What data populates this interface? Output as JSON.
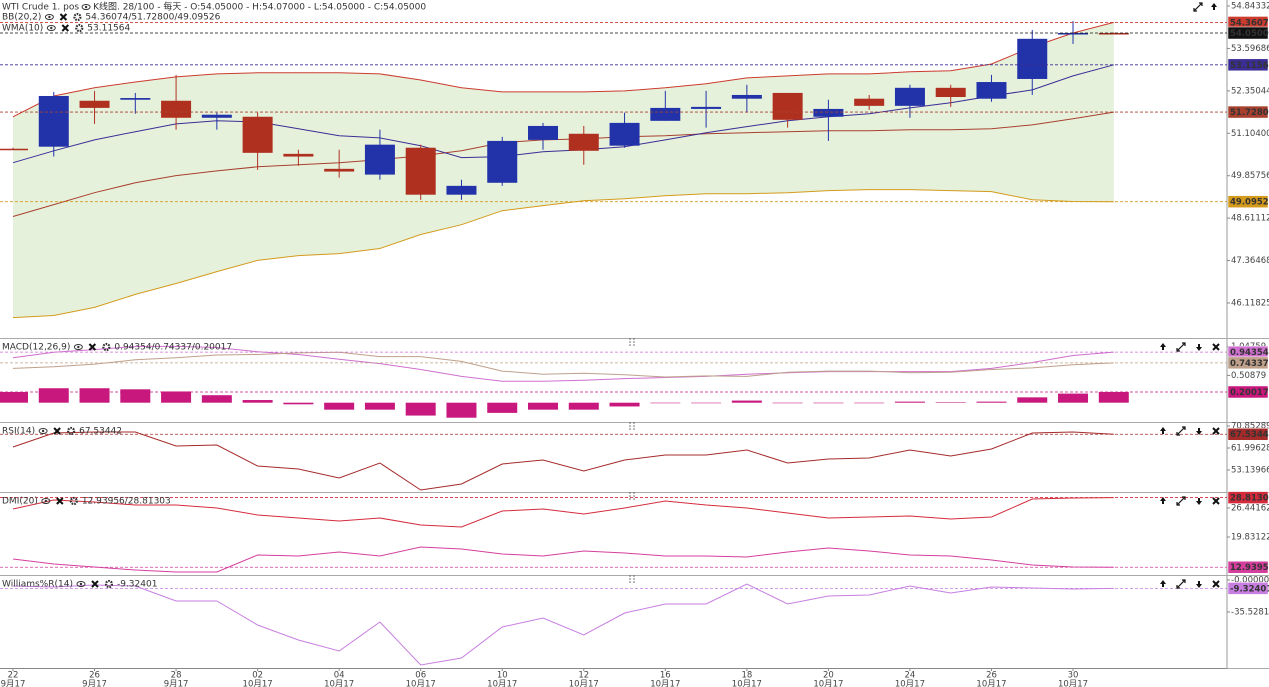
{
  "chart_data": [
    {
      "type": "candlestick",
      "title": "WTI Crude 1. pos",
      "subtitle": "K线图. 28/100 - 每天 - O:54.05000 - H:54.07000 - L:54.05000 - C:54.05000",
      "categories": [
        "22",
        null,
        "26",
        null,
        "28",
        null,
        "02",
        null,
        "04",
        null,
        "06",
        null,
        "10",
        null,
        "12",
        null,
        "16",
        null,
        "18",
        null,
        "20",
        null,
        "24",
        null,
        "26",
        null,
        "30",
        null
      ],
      "category_months": [
        "9月17",
        null,
        "9月17",
        null,
        "9月17",
        null,
        "10月17",
        null,
        "10月17",
        null,
        "10月17",
        null,
        "10月17",
        null,
        "10月17",
        null,
        "10月17",
        null,
        "10月17",
        null,
        "10月17",
        null,
        "10月17",
        null,
        "10月17",
        null,
        "10月17",
        null
      ],
      "up_color": "#2233aa",
      "down_color": "#b03020",
      "close_color": "#111111",
      "band_fill": "#e6f1dc",
      "open": [
        50.65,
        50.71,
        52.06,
        52.09,
        52.06,
        51.56,
        51.59,
        50.5,
        50.06,
        49.89,
        50.68,
        49.3,
        49.65,
        50.91,
        51.09,
        50.74,
        51.47,
        51.82,
        52.12,
        52.29,
        51.59,
        52.12,
        51.91,
        52.44,
        52.12,
        52.7,
        54.02,
        54.05
      ],
      "high": [
        50.68,
        52.32,
        52.35,
        52.29,
        52.82,
        51.71,
        51.71,
        50.62,
        50.62,
        51.21,
        50.77,
        49.74,
        51.0,
        51.41,
        51.32,
        51.71,
        52.35,
        52.35,
        52.53,
        52.29,
        52.09,
        52.23,
        52.53,
        52.53,
        52.82,
        54.14,
        54.4,
        54.07
      ],
      "low": [
        50.62,
        50.42,
        51.38,
        51.68,
        51.21,
        51.21,
        50.03,
        50.15,
        49.8,
        49.74,
        49.15,
        49.15,
        49.56,
        50.62,
        50.18,
        50.68,
        51.47,
        51.27,
        51.71,
        51.27,
        50.88,
        51.79,
        51.56,
        51.88,
        52.03,
        52.23,
        53.73,
        54.05
      ],
      "close": [
        50.65,
        52.2,
        51.85,
        52.14,
        51.56,
        51.65,
        50.53,
        50.42,
        49.98,
        50.77,
        49.3,
        49.56,
        50.88,
        51.32,
        50.59,
        51.41,
        51.85,
        51.88,
        52.23,
        51.5,
        51.82,
        51.91,
        52.44,
        52.17,
        52.61,
        53.88,
        54.05,
        54.05
      ],
      "close_labels": [
        null,
        null,
        null,
        null,
        null,
        null,
        null,
        null,
        null,
        null,
        null,
        null,
        null,
        null,
        null,
        null,
        null,
        null,
        null,
        null,
        null,
        null,
        null,
        null,
        null,
        null,
        null,
        "54.05000"
      ],
      "legend": [
        {
          "label": "BB(20,2)",
          "value": "54.36074/51.72800/49.09526",
          "color": "#c0392b"
        },
        {
          "label": "WMA(10)",
          "value": "53.11564",
          "color": "#4a2c8a"
        }
      ],
      "series": [
        {
          "color": "#cc3b2e",
          "band": true,
          "values": [
            51.59,
            52.2,
            52.44,
            52.61,
            52.76,
            52.85,
            52.88,
            52.88,
            52.88,
            52.85,
            52.67,
            52.44,
            52.32,
            52.32,
            52.32,
            52.35,
            52.44,
            52.56,
            52.73,
            52.79,
            52.85,
            52.85,
            52.91,
            52.94,
            53.14,
            53.64,
            54.05,
            54.36074
          ],
          "value_labels": [
            null,
            null,
            null,
            null,
            null,
            null,
            null,
            null,
            null,
            null,
            null,
            null,
            null,
            null,
            null,
            null,
            null,
            null,
            null,
            null,
            null,
            null,
            null,
            null,
            null,
            null,
            null,
            "54.36074"
          ]
        },
        {
          "color": "#a8402f",
          "values": [
            48.66,
            49.01,
            49.36,
            49.65,
            49.86,
            50.0,
            50.12,
            50.18,
            50.24,
            50.33,
            50.44,
            50.59,
            50.83,
            50.91,
            50.94,
            51.0,
            51.03,
            51.09,
            51.12,
            51.15,
            51.18,
            51.18,
            51.21,
            51.21,
            51.24,
            51.35,
            51.53,
            51.728
          ],
          "value_labels": [
            null,
            null,
            null,
            null,
            null,
            null,
            null,
            null,
            null,
            null,
            null,
            null,
            null,
            null,
            null,
            null,
            null,
            null,
            null,
            null,
            null,
            null,
            null,
            null,
            null,
            null,
            null,
            "51.72800"
          ]
        },
        {
          "color": "#d49a1c",
          "band": true,
          "values": [
            45.69,
            45.75,
            45.99,
            46.37,
            46.69,
            47.04,
            47.37,
            47.51,
            47.57,
            47.72,
            48.13,
            48.42,
            48.83,
            48.98,
            49.12,
            49.18,
            49.27,
            49.33,
            49.33,
            49.36,
            49.42,
            49.45,
            49.45,
            49.42,
            49.39,
            49.15,
            49.1,
            49.09526
          ],
          "value_labels": [
            null,
            null,
            null,
            null,
            null,
            null,
            null,
            null,
            null,
            null,
            null,
            null,
            null,
            null,
            null,
            null,
            null,
            null,
            null,
            null,
            null,
            null,
            null,
            null,
            null,
            null,
            null,
            "49.09526"
          ]
        },
        {
          "color": "#3b2d96",
          "values": [
            50.24,
            50.59,
            50.91,
            51.15,
            51.38,
            51.47,
            51.44,
            51.24,
            51.03,
            50.97,
            50.74,
            50.39,
            50.42,
            50.56,
            50.62,
            50.71,
            50.91,
            51.12,
            51.3,
            51.47,
            51.59,
            51.68,
            51.85,
            52.0,
            52.2,
            52.38,
            52.79,
            53.11564
          ],
          "value_labels": [
            null,
            null,
            null,
            null,
            null,
            null,
            null,
            null,
            null,
            null,
            null,
            null,
            null,
            null,
            null,
            null,
            null,
            null,
            null,
            null,
            null,
            null,
            null,
            null,
            null,
            null,
            null,
            "53.11564"
          ]
        }
      ],
      "ylim": [
        45.09,
        55.02
      ],
      "yticks": [
        54.84332,
        53.59686,
        52.35044,
        {
          "value": 51.104,
          "label": "51.10400"
        },
        49.85756,
        48.61112,
        47.36468,
        46.11825
      ]
    },
    {
      "type": "combo",
      "legend": [
        {
          "label": "MACD(12,26,9)",
          "value": "0.94354/0.74337/0.20017",
          "color": "#c05ac0"
        }
      ],
      "series": [
        {
          "kind": "bar",
          "color": "#c8187e",
          "values": [
            0.2,
            0.27,
            0.27,
            0.25,
            0.21,
            0.14,
            0.05,
            -0.03,
            -0.13,
            -0.13,
            -0.24,
            -0.28,
            -0.19,
            -0.13,
            -0.13,
            -0.07,
            -0.01,
            -0.01,
            0.04,
            -0.01,
            -0.01,
            -0.01,
            0.02,
            0.01,
            0.02,
            0.1,
            0.17,
            0.20017
          ],
          "value_labels": [
            null,
            null,
            null,
            null,
            null,
            null,
            null,
            null,
            null,
            null,
            null,
            null,
            null,
            null,
            null,
            null,
            null,
            null,
            null,
            null,
            null,
            null,
            null,
            null,
            null,
            null,
            null,
            "0.20017"
          ]
        },
        {
          "kind": "line",
          "color": "#cf6fcf",
          "values": [
            0.84,
            0.94,
            0.99,
            1.05,
            1.05,
            1.03,
            0.95,
            0.9,
            0.81,
            0.73,
            0.62,
            0.49,
            0.4,
            0.4,
            0.42,
            0.45,
            0.47,
            0.49,
            0.53,
            0.56,
            0.58,
            0.58,
            0.58,
            0.58,
            0.64,
            0.75,
            0.88,
            0.94354
          ],
          "value_labels": [
            null,
            null,
            null,
            null,
            null,
            null,
            null,
            null,
            null,
            null,
            null,
            null,
            null,
            null,
            null,
            null,
            null,
            null,
            null,
            null,
            null,
            null,
            null,
            null,
            null,
            null,
            null,
            "0.94354"
          ]
        },
        {
          "kind": "line",
          "color": "#bfa08a",
          "values": [
            0.64,
            0.67,
            0.72,
            0.8,
            0.84,
            0.89,
            0.9,
            0.93,
            0.94,
            0.86,
            0.86,
            0.77,
            0.59,
            0.53,
            0.55,
            0.52,
            0.48,
            0.5,
            0.49,
            0.57,
            0.59,
            0.59,
            0.56,
            0.57,
            0.62,
            0.65,
            0.71,
            0.74337
          ],
          "value_labels": [
            null,
            null,
            null,
            null,
            null,
            null,
            null,
            null,
            null,
            null,
            null,
            null,
            null,
            null,
            null,
            null,
            null,
            null,
            null,
            null,
            null,
            null,
            null,
            null,
            null,
            null,
            null,
            "0.74337"
          ]
        }
      ],
      "ylim": [
        -0.36,
        1.17
      ],
      "yticks": [
        1.04759,
        0.50879
      ]
    },
    {
      "type": "line",
      "legend": [
        {
          "label": "RSI(14)",
          "value": "67.53442",
          "color": "#a52a2a"
        }
      ],
      "series": [
        {
          "color": "#a52a2a",
          "values": [
            62.4,
            68.04,
            68.44,
            68.44,
            62.81,
            63.21,
            54.75,
            53.55,
            49.92,
            55.96,
            45.09,
            47.51,
            55.56,
            57.17,
            52.74,
            57.17,
            59.18,
            59.18,
            61.19,
            55.96,
            57.57,
            57.97,
            61.19,
            58.78,
            61.6,
            68.04,
            68.44,
            67.53442
          ],
          "value_labels": [
            null,
            null,
            null,
            null,
            null,
            null,
            null,
            null,
            null,
            null,
            null,
            null,
            null,
            null,
            null,
            null,
            null,
            null,
            null,
            null,
            null,
            null,
            null,
            null,
            null,
            null,
            null,
            "67.53442"
          ]
        }
      ],
      "ylim": [
        44.28,
        71.66
      ],
      "yticks": [
        70.85289,
        61.99628,
        53.13966
      ]
    },
    {
      "type": "line",
      "legend": [
        {
          "label": "DMI(20)",
          "value": "12.93956/28.81303",
          "color": "#d42b3c"
        }
      ],
      "series": [
        {
          "color": "#d42b3c",
          "values": [
            26.21,
            28.26,
            27.81,
            27.12,
            27.12,
            26.44,
            24.85,
            24.16,
            23.48,
            24.16,
            22.57,
            22.11,
            25.76,
            26.21,
            25.07,
            26.44,
            28.04,
            27.12,
            26.44,
            25.3,
            24.16,
            24.39,
            24.62,
            23.93,
            24.39,
            28.49,
            28.72,
            28.81303
          ],
          "value_labels": [
            null,
            null,
            null,
            null,
            null,
            null,
            null,
            null,
            null,
            null,
            null,
            null,
            null,
            null,
            null,
            null,
            null,
            null,
            null,
            null,
            null,
            null,
            null,
            null,
            null,
            null,
            null,
            "28.81303"
          ]
        },
        {
          "color": "#d43f9e",
          "values": [
            14.82,
            13.68,
            12.99,
            12.31,
            11.85,
            11.85,
            15.73,
            15.5,
            16.41,
            15.5,
            17.55,
            17.1,
            15.96,
            15.5,
            16.64,
            16.18,
            15.5,
            15.5,
            15.27,
            16.41,
            17.32,
            16.64,
            15.73,
            15.5,
            14.59,
            13.45,
            12.99,
            12.93956
          ],
          "value_labels": [
            null,
            null,
            null,
            null,
            null,
            null,
            null,
            null,
            null,
            null,
            null,
            null,
            null,
            null,
            null,
            null,
            null,
            null,
            null,
            null,
            null,
            null,
            null,
            null,
            null,
            null,
            null,
            "12.93956"
          ]
        }
      ],
      "ylim": [
        11.17,
        29.63
      ],
      "yticks": [
        26.44162,
        19.83122
      ]
    },
    {
      "type": "line",
      "legend": [
        {
          "label": "Williams%R(14)",
          "value": "-9.32401",
          "color": "#b566d6"
        }
      ],
      "series": [
        {
          "color": "#c77ee0",
          "values": [
            -6.66,
            -7.77,
            -5.55,
            -6.66,
            -23.32,
            -23.32,
            -49.96,
            -66.62,
            -78.83,
            -46.63,
            -94.37,
            -86.6,
            -52.18,
            -42.19,
            -61.06,
            -36.64,
            -26.65,
            -26.65,
            -4.44,
            -26.65,
            -17.76,
            -16.65,
            -6.66,
            -14.43,
            -7.77,
            -8.88,
            -9.99,
            -9.32401
          ],
          "value_labels": [
            null,
            null,
            null,
            null,
            null,
            null,
            null,
            null,
            null,
            null,
            null,
            null,
            null,
            null,
            null,
            null,
            null,
            null,
            null,
            null,
            null,
            null,
            null,
            null,
            null,
            null,
            null,
            "-9.32401"
          ]
        }
      ],
      "ylim": [
        -97.7,
        3.33
      ],
      "yticks": [
        {
          "value": 0,
          "label": "-0.00000"
        },
        {
          "value": -35.5281,
          "label": "-35.52810"
        }
      ]
    }
  ]
}
